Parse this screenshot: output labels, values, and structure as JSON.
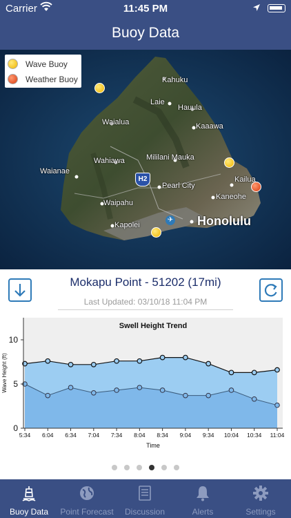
{
  "status_bar": {
    "carrier": "Carrier",
    "time": "11:45 PM"
  },
  "nav": {
    "title": "Buoy Data"
  },
  "map": {
    "legend": [
      {
        "label": "Wave Buoy",
        "type": "wave"
      },
      {
        "label": "Weather Buoy",
        "type": "weather"
      }
    ],
    "places": {
      "kahuku": "Kahuku",
      "laie": "Laie",
      "hauula": "Hauula",
      "waialua": "Waialua",
      "kaaawa": "Kaaawa",
      "wahiawa": "Wahiawa",
      "mililani": "Mililani Mauka",
      "waianae": "Waianae",
      "kailua": "Kailua",
      "pearl_city": "Pearl City",
      "kaneohe": "Kaneohe",
      "waipahu": "Waipahu",
      "kapolei": "Kapolei",
      "honolulu": "Honolulu"
    },
    "highway_shield": "H2"
  },
  "station": {
    "title": "Mokapu Point - 51202 (17mi)",
    "last_updated": "Last Updated: 03/10/18 11:04 PM"
  },
  "chart_data": {
    "type": "area",
    "title": "Swell Height Trend",
    "xlabel": "Time",
    "ylabel": "Wave Height (ft)",
    "x": [
      "5:34",
      "6:04",
      "6:34",
      "7:04",
      "7:34",
      "8:04",
      "8:34",
      "9:04",
      "9:34",
      "10:04",
      "10:34",
      "11:04"
    ],
    "yticks": [
      "0",
      "5",
      "10"
    ],
    "ylim": [
      0,
      12.5
    ],
    "series": [
      {
        "values": [
          7.3,
          7.6,
          7.2,
          7.2,
          7.6,
          7.6,
          8.0,
          8.0,
          7.3,
          6.3,
          6.3,
          6.6
        ]
      },
      {
        "values": [
          5.0,
          3.7,
          4.6,
          4.0,
          4.3,
          4.6,
          4.3,
          3.7,
          3.7,
          4.3,
          3.3,
          2.6
        ]
      }
    ],
    "colors": {
      "upper": "#9ccdf2",
      "lower": "#7fb8ea",
      "plot_bg": "#efefef"
    }
  },
  "pager": {
    "count": 6,
    "active": 3
  },
  "tabs": [
    {
      "label": "Buoy Data",
      "icon": "buoy-icon",
      "active": true
    },
    {
      "label": "Point Forecast",
      "icon": "globe-icon",
      "active": false
    },
    {
      "label": "Discussion",
      "icon": "document-icon",
      "active": false
    },
    {
      "label": "Alerts",
      "icon": "bell-icon",
      "active": false
    },
    {
      "label": "Settings",
      "icon": "gear-icon",
      "active": false
    }
  ]
}
